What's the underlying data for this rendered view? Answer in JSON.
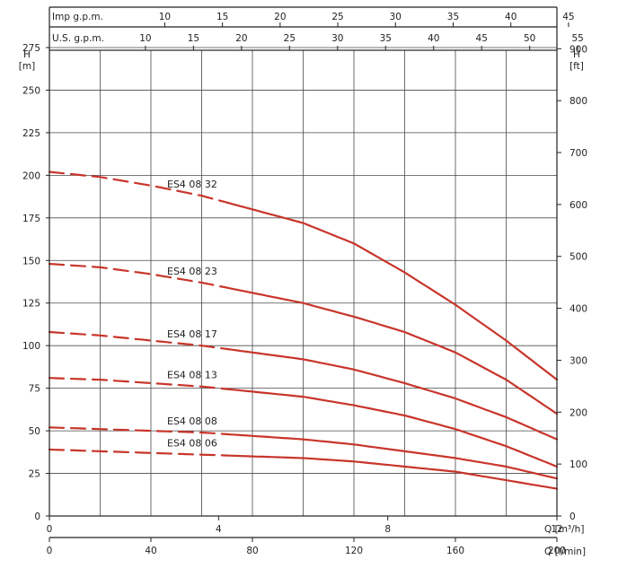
{
  "chart_data": {
    "type": "line",
    "colors": {
      "curve": "#c8352b",
      "grid": "#4a4a4a",
      "text": "#222222"
    },
    "top_axes": [
      {
        "label": "Imp g.p.m.",
        "ticks": [
          10,
          15,
          20,
          25,
          30,
          35,
          40,
          45
        ],
        "factor_per_lmin": 0.219969
      },
      {
        "label": "U.S. g.p.m.",
        "ticks": [
          10,
          15,
          20,
          25,
          30,
          35,
          40,
          45,
          50,
          55
        ],
        "factor_per_lmin": 0.264172
      }
    ],
    "y_left": {
      "label_top": "H",
      "label_unit": "[m]",
      "min": 0,
      "max": 275,
      "ticks": [
        0,
        25,
        50,
        75,
        100,
        125,
        150,
        175,
        200,
        225,
        250,
        275
      ]
    },
    "y_right": {
      "label_top": "H",
      "label_unit": "[ft]",
      "ticks": [
        0,
        100,
        200,
        300,
        400,
        500,
        600,
        700,
        800,
        900
      ],
      "factor_per_m": 3.28084
    },
    "x_bottom_m3h": {
      "label": "Q [m³/h]",
      "min": 0,
      "max": 12,
      "ticks": [
        0,
        4,
        8,
        12
      ]
    },
    "x_bottom_lmin": {
      "label": "Q [l/min]",
      "ticks": [
        0,
        40,
        80,
        120,
        160,
        200
      ]
    },
    "dashed_until_lmin": 70,
    "series": [
      {
        "name": "ES4 08 32",
        "x": [
          0,
          20,
          40,
          60,
          80,
          100,
          120,
          140,
          160,
          180,
          200
        ],
        "y": [
          202,
          199,
          194,
          188,
          180,
          172,
          160,
          143,
          124,
          103,
          80
        ]
      },
      {
        "name": "ES4 08 23",
        "x": [
          0,
          20,
          40,
          60,
          80,
          100,
          120,
          140,
          160,
          180,
          200
        ],
        "y": [
          148,
          146,
          142,
          137,
          131,
          125,
          117,
          108,
          96,
          80,
          60
        ]
      },
      {
        "name": "ES4 08 17",
        "x": [
          0,
          20,
          40,
          60,
          80,
          100,
          120,
          140,
          160,
          180,
          200
        ],
        "y": [
          108,
          106,
          103,
          100,
          96,
          92,
          86,
          78,
          69,
          58,
          45
        ]
      },
      {
        "name": "ES4 08 13",
        "x": [
          0,
          20,
          40,
          60,
          80,
          100,
          120,
          140,
          160,
          180,
          200
        ],
        "y": [
          81,
          80,
          78,
          76,
          73,
          70,
          65,
          59,
          51,
          41,
          29
        ]
      },
      {
        "name": "ES4 08 08",
        "x": [
          0,
          20,
          40,
          60,
          80,
          100,
          120,
          140,
          160,
          180,
          200
        ],
        "y": [
          52,
          51,
          50,
          49,
          47,
          45,
          42,
          38,
          34,
          29,
          22
        ]
      },
      {
        "name": "ES4 08 06",
        "x": [
          0,
          20,
          40,
          60,
          80,
          100,
          120,
          140,
          160,
          180,
          200
        ],
        "y": [
          39,
          38,
          37,
          36,
          35,
          34,
          32,
          29,
          26,
          21,
          16
        ]
      }
    ]
  }
}
